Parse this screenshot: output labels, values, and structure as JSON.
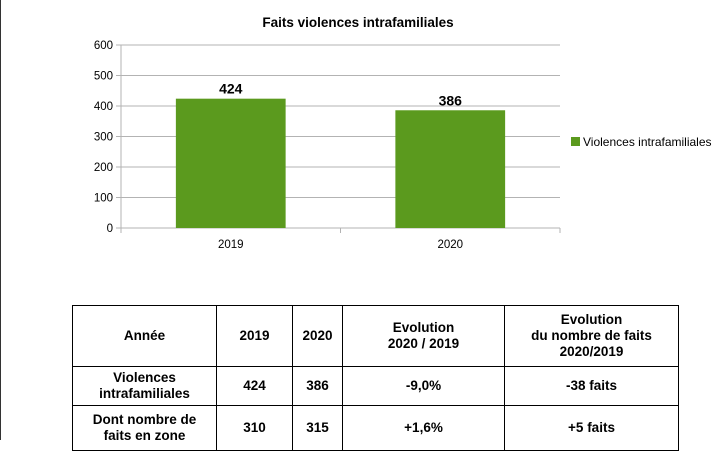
{
  "chart_data": {
    "type": "bar",
    "title": "Faits violences intrafamiliales",
    "categories": [
      "2019",
      "2020"
    ],
    "series": [
      {
        "name": "Violences intrafamiliales",
        "values": [
          424,
          386
        ],
        "color": "#5b9a1e"
      }
    ],
    "data_labels": [
      "424",
      "386"
    ],
    "ylim": [
      0,
      600
    ],
    "yticks": [
      0,
      100,
      200,
      300,
      400,
      500,
      600
    ],
    "grid": true,
    "legend_position": "right"
  },
  "table": {
    "header": [
      "Année",
      "2019",
      "2020",
      "Evolution\n2020 / 2019",
      "Evolution\ndu nombre de faits\n2020/2019"
    ],
    "rows": [
      [
        "Violences\nintrafamiliales",
        "424",
        "386",
        "-9,0%",
        "-38 faits"
      ],
      [
        "Dont nombre de\nfaits en zone",
        "310",
        "315",
        "+1,6%",
        "+5 faits"
      ]
    ]
  }
}
